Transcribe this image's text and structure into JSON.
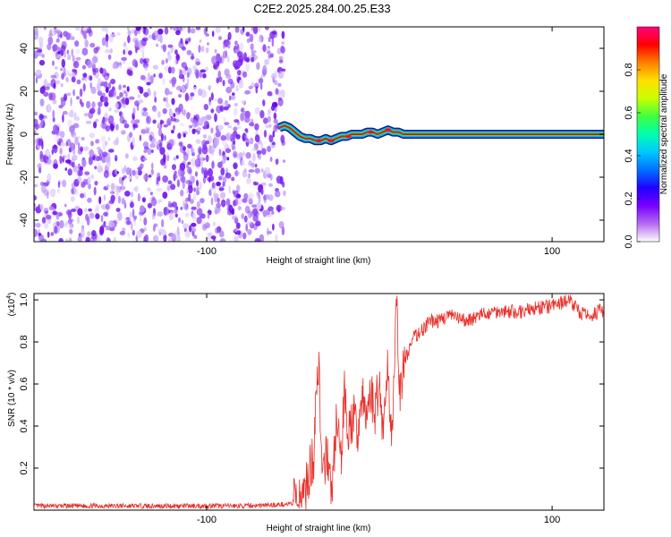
{
  "title": "C2E2.2025.284.00.25.E33",
  "colors": {
    "snr_line": "#e8302a",
    "background": "#ffffff",
    "axis": "#000000"
  },
  "chart_data": [
    {
      "type": "heatmap",
      "name": "spectrogram",
      "xlabel": "Height of straight line (km)",
      "ylabel": "Frequency (Hz)",
      "xlim": [
        -200,
        130
      ],
      "ylim": [
        -50,
        50
      ],
      "x_ticks": [
        -100,
        100
      ],
      "x_tick_labels": [
        "-100",
        "100"
      ],
      "y_ticks": [
        -40,
        -20,
        0,
        20,
        40
      ],
      "y_tick_labels": [
        "-40",
        "-20",
        "0",
        "20",
        "40"
      ],
      "noise_region_x": [
        -200,
        -55
      ],
      "signal_track": {
        "x": [
          -58,
          -55,
          -52,
          -49,
          -46,
          -43,
          -40,
          -37,
          -34,
          -31,
          -28,
          -25,
          -22,
          -19,
          -16,
          -13,
          -10,
          -7,
          -4,
          -1,
          2,
          5,
          8,
          11,
          14,
          17,
          20,
          30,
          60,
          100,
          130
        ],
        "frequency": [
          3,
          4,
          3,
          1,
          -1,
          -2,
          -2,
          -3,
          -3,
          -2,
          -3,
          -2,
          -1,
          -1,
          0,
          0,
          0,
          1,
          1,
          0,
          1,
          2,
          1,
          1,
          0,
          0,
          0,
          0,
          0,
          0,
          0
        ]
      },
      "colorbar": {
        "label": "Normalized spectral amplitude",
        "range": [
          0,
          1
        ],
        "ticks": [
          0.0,
          0.2,
          0.4,
          0.6,
          0.8
        ],
        "tick_labels": [
          "0.0",
          "0.2",
          "0.4",
          "0.6",
          "0.8"
        ],
        "stops": [
          "#ffffff",
          "#b36cf0",
          "#7a00ff",
          "#2000ff",
          "#0070ff",
          "#00c8ff",
          "#00ffb0",
          "#40ff40",
          "#c8ff00",
          "#ffe000",
          "#ff8000",
          "#ff0000",
          "#ff0080"
        ]
      }
    },
    {
      "type": "line",
      "name": "snr",
      "xlabel": "Height of straight line (km)",
      "ylabel": "SNR (10 * v/v)",
      "y_multiplier_label": "(x10",
      "y_multiplier_exponent": "4",
      "y_multiplier_close": ")",
      "xlim": [
        -200,
        130
      ],
      "ylim": [
        0,
        1.03
      ],
      "x_ticks": [
        -100,
        100
      ],
      "x_tick_labels": [
        "-100",
        "100"
      ],
      "y_ticks": [
        0.2,
        0.4,
        0.6,
        0.8,
        1.0
      ],
      "y_tick_labels": [
        "0.2",
        "0.4",
        "0.6",
        "0.8",
        "1.0"
      ],
      "series": [
        {
          "name": "SNR",
          "x": [
            -200,
            -180,
            -160,
            -140,
            -120,
            -100,
            -80,
            -60,
            -50,
            -45,
            -42,
            -40,
            -38,
            -37,
            -35,
            -33,
            -30,
            -28,
            -25,
            -22,
            -20,
            -18,
            -15,
            -13,
            -10,
            -8,
            -5,
            -3,
            0,
            2,
            5,
            7,
            10,
            12,
            15,
            18,
            20,
            25,
            30,
            35,
            40,
            45,
            50,
            60,
            70,
            80,
            90,
            100,
            110,
            115,
            120,
            125,
            130
          ],
          "y": [
            0.02,
            0.02,
            0.02,
            0.02,
            0.02,
            0.02,
            0.02,
            0.025,
            0.03,
            0.05,
            0.12,
            0.2,
            0.25,
            0.55,
            0.7,
            0.1,
            0.3,
            0.05,
            0.4,
            0.25,
            0.6,
            0.35,
            0.45,
            0.35,
            0.55,
            0.42,
            0.58,
            0.45,
            0.62,
            0.38,
            0.68,
            0.35,
            0.95,
            0.55,
            0.72,
            0.78,
            0.82,
            0.86,
            0.9,
            0.9,
            0.93,
            0.91,
            0.9,
            0.93,
            0.95,
            0.94,
            0.96,
            0.97,
            1.0,
            0.95,
            0.92,
            0.94,
            0.95
          ]
        }
      ]
    }
  ]
}
